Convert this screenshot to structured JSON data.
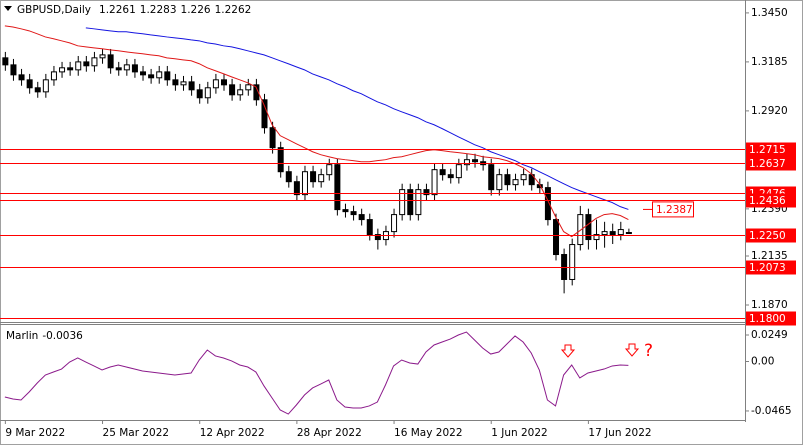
{
  "chart_data": [
    {
      "type": "candlestick",
      "title": "GBPUSD,Daily",
      "up_color": "#ffffff",
      "down_color": "#000000",
      "open": [
        1.3207,
        1.3169,
        1.3115,
        1.3088,
        1.3045,
        1.3023,
        1.3088,
        1.3131,
        1.3153,
        1.3142,
        1.3185,
        1.3164,
        1.3207,
        1.3223,
        1.3153,
        1.3142,
        1.3169,
        1.3131,
        1.3115,
        1.3099,
        1.3131,
        1.3088,
        1.3061,
        1.3077,
        1.3034,
        1.2991,
        1.3045,
        1.3088,
        1.3061,
        1.3007,
        1.3034,
        1.3061,
        1.298,
        1.2829,
        1.2721,
        1.2591,
        1.2537,
        1.2467,
        1.2591,
        1.2537,
        1.2575,
        1.2629,
        1.2386,
        1.2375,
        1.2359,
        1.2332,
        1.2251,
        1.2224,
        1.2267,
        1.2359,
        1.2494,
        1.2359,
        1.2494,
        1.2467,
        1.2602,
        1.2575,
        1.2559,
        1.2629,
        1.2656,
        1.2645,
        1.2629,
        1.2494,
        1.2575,
        1.2521,
        1.2548,
        1.2575,
        1.2521,
        1.2505,
        1.2332,
        1.2143,
        1.2008,
        1.2197,
        1.2359,
        1.2224,
        1.2251,
        1.2267,
        1.2251,
        1.2261
      ],
      "high": [
        1.3239,
        1.3201,
        1.3147,
        1.312,
        1.3077,
        1.312,
        1.3163,
        1.3185,
        1.3185,
        1.3217,
        1.3217,
        1.3239,
        1.3255,
        1.3255,
        1.3185,
        1.3201,
        1.3201,
        1.3163,
        1.3147,
        1.3163,
        1.3163,
        1.312,
        1.3109,
        1.3109,
        1.3066,
        1.3077,
        1.312,
        1.312,
        1.3093,
        1.3066,
        1.3093,
        1.3093,
        1.3012,
        1.2861,
        1.2753,
        1.2623,
        1.2569,
        1.2623,
        1.2623,
        1.2607,
        1.2661,
        1.2661,
        1.2418,
        1.2407,
        1.2391,
        1.2364,
        1.2283,
        1.2299,
        1.2391,
        1.2526,
        1.2526,
        1.2526,
        1.2526,
        1.2634,
        1.2634,
        1.2607,
        1.2661,
        1.2688,
        1.2688,
        1.2677,
        1.2661,
        1.2607,
        1.2607,
        1.258,
        1.2607,
        1.2607,
        1.2553,
        1.2537,
        1.2364,
        1.2175,
        1.2229,
        1.2406,
        1.2391,
        1.2332,
        1.232,
        1.231,
        1.232,
        1.2283
      ],
      "low": [
        1.3137,
        1.3083,
        1.3056,
        1.3013,
        1.2991,
        1.2991,
        1.3056,
        1.3099,
        1.311,
        1.311,
        1.3132,
        1.3132,
        1.3175,
        1.3121,
        1.311,
        1.311,
        1.3099,
        1.3083,
        1.3067,
        1.3067,
        1.3056,
        1.3029,
        1.3029,
        1.3002,
        1.2959,
        1.2959,
        1.3013,
        1.3029,
        1.2975,
        1.2975,
        1.3002,
        1.2948,
        1.2797,
        1.2689,
        1.2559,
        1.2505,
        1.2435,
        1.2435,
        1.2505,
        1.2505,
        1.2543,
        1.2354,
        1.2343,
        1.2327,
        1.23,
        1.2219,
        1.217,
        1.2192,
        1.2235,
        1.2327,
        1.2327,
        1.2327,
        1.2435,
        1.2435,
        1.2543,
        1.2527,
        1.2527,
        1.2597,
        1.2613,
        1.2597,
        1.2462,
        1.2462,
        1.2489,
        1.2489,
        1.2516,
        1.2489,
        1.2473,
        1.23,
        1.2111,
        1.1933,
        1.1976,
        1.2165,
        1.217,
        1.217,
        1.218,
        1.22,
        1.222,
        1.226
      ],
      "close": [
        1.3169,
        1.3115,
        1.3088,
        1.3045,
        1.3023,
        1.3088,
        1.3131,
        1.3153,
        1.3142,
        1.3185,
        1.3164,
        1.3207,
        1.3223,
        1.3153,
        1.3142,
        1.3169,
        1.3131,
        1.3115,
        1.3099,
        1.3131,
        1.3088,
        1.3061,
        1.3077,
        1.3034,
        1.2991,
        1.3045,
        1.3088,
        1.3061,
        1.3007,
        1.3034,
        1.3061,
        1.298,
        1.2829,
        1.2721,
        1.2591,
        1.2537,
        1.2467,
        1.2591,
        1.2537,
        1.2575,
        1.2629,
        1.2386,
        1.2375,
        1.2359,
        1.2332,
        1.2251,
        1.2224,
        1.2267,
        1.2359,
        1.2494,
        1.2359,
        1.2494,
        1.2467,
        1.2602,
        1.2575,
        1.2559,
        1.2629,
        1.2656,
        1.2645,
        1.2629,
        1.2494,
        1.2575,
        1.2521,
        1.2548,
        1.2575,
        1.2521,
        1.2505,
        1.2332,
        1.2143,
        1.2008,
        1.2197,
        1.2359,
        1.2224,
        1.2251,
        1.2267,
        1.2251,
        1.2278,
        1.2262
      ],
      "overlays": [
        {
          "color": "#e01818",
          "values": [
            1.338,
            1.3374,
            1.3364,
            1.3353,
            1.3337,
            1.332,
            1.331,
            1.3299,
            1.3288,
            1.3272,
            1.3266,
            1.3261,
            1.3256,
            1.325,
            1.3245,
            1.3239,
            1.3234,
            1.3229,
            1.3223,
            1.3218,
            1.3207,
            1.3202,
            1.3196,
            1.3191,
            1.3175,
            1.3153,
            1.3137,
            1.3121,
            1.3104,
            1.3088,
            1.3072,
            1.305,
            1.2953,
            1.2845,
            1.2786,
            1.2764,
            1.2742,
            1.2721,
            1.2699,
            1.2683,
            1.2672,
            1.2662,
            1.2656,
            1.2651,
            1.2645,
            1.2645,
            1.2651,
            1.2656,
            1.2667,
            1.2672,
            1.2683,
            1.2694,
            1.2705,
            1.271,
            1.2705,
            1.2699,
            1.2694,
            1.2689,
            1.2683,
            1.2672,
            1.2667,
            1.2662,
            1.2651,
            1.2634,
            1.2613,
            1.258,
            1.2526,
            1.244,
            1.2348,
            1.2267,
            1.224,
            1.2272,
            1.2305,
            1.2338,
            1.2359,
            1.2364,
            1.2354,
            1.2332
          ]
        },
        {
          "color": "#1414e0",
          "value_callout": true,
          "values": [
            null,
            null,
            null,
            null,
            null,
            null,
            null,
            null,
            null,
            null,
            1.3369,
            1.3364,
            1.3358,
            1.3353,
            1.3348,
            1.3348,
            1.3342,
            1.3337,
            1.3331,
            1.3326,
            1.332,
            1.3315,
            1.331,
            1.3304,
            1.3299,
            1.3288,
            1.3282,
            1.3272,
            1.3266,
            1.3256,
            1.3245,
            1.3234,
            1.3223,
            1.3207,
            1.3191,
            1.3175,
            1.3158,
            1.3142,
            1.312,
            1.3104,
            1.3088,
            1.3067,
            1.305,
            1.3029,
            1.3013,
            1.2991,
            1.2969,
            1.2953,
            1.2932,
            1.2915,
            1.2899,
            1.2883,
            1.2861,
            1.2845,
            1.2824,
            1.2802,
            1.278,
            1.2759,
            1.2737,
            1.2721,
            1.2699,
            1.2683,
            1.2667,
            1.2651,
            1.2629,
            1.2613,
            1.2591,
            1.257,
            1.2548,
            1.2526,
            1.2505,
            1.2488,
            1.2472,
            1.2456,
            1.244,
            1.2424,
            1.2402,
            1.2387
          ]
        }
      ],
      "levels": [
        1.2715,
        1.2637,
        1.2476,
        1.2436,
        {
          "value": 1.225,
          "label": "1.2250"
        },
        1.2073,
        {
          "value": 1.18,
          "label": "1.1800"
        }
      ],
      "level_color": "#ff0000",
      "xlim": [
        -0.6,
        91.4
      ],
      "ylim": [
        1.1778,
        1.3509
      ],
      "yticks": [
        {
          "value": 1.345,
          "label": "1.3450"
        },
        1.3185,
        {
          "value": 1.292,
          "label": "1.2920"
        },
        {
          "value": 1.239,
          "label": "1.2390"
        },
        1.2135,
        {
          "value": 1.187,
          "label": "1.1870"
        }
      ]
    },
    {
      "type": "line",
      "series": [
        {
          "name": "Marlin",
          "color": "#8b1a8b",
          "values": [
            -0.0334,
            -0.0353,
            -0.0362,
            -0.0287,
            -0.0202,
            -0.0127,
            -0.0099,
            -0.0071,
            -0.0005,
            0.0033,
            -0.0005,
            -0.0042,
            -0.008,
            -0.0052,
            -0.0033,
            -0.0052,
            -0.0071,
            -0.0089,
            -0.0099,
            -0.0108,
            -0.0118,
            -0.0127,
            -0.0118,
            -0.0108,
            0.0014,
            0.0108,
            0.0052,
            0.0033,
            0.0005,
            -0.0033,
            -0.0052,
            -0.0099,
            -0.023,
            -0.0343,
            -0.0456,
            -0.0494,
            -0.0409,
            -0.0315,
            -0.0249,
            -0.0212,
            -0.0174,
            -0.0362,
            -0.0428,
            -0.0437,
            -0.0437,
            -0.0418,
            -0.0381,
            -0.0221,
            -0.0042,
            0.0014,
            -0.0014,
            -0.0024,
            0.0089,
            0.0155,
            0.0183,
            0.0211,
            0.0249,
            0.0277,
            0.0202,
            0.0127,
            0.007,
            0.0089,
            0.0164,
            0.024,
            0.0183,
            0.008,
            -0.008,
            -0.0362,
            -0.0418,
            -0.0127,
            -0.0033,
            -0.0155,
            -0.0108,
            -0.0089,
            -0.0071,
            -0.0042,
            -0.0033,
            -0.0036
          ]
        }
      ],
      "annotations": [
        "?"
      ],
      "annotation_color": "#ff0000",
      "xlim": [
        -0.6,
        91.4
      ],
      "xticks": [
        {
          "value": 0,
          "label": "9 Mar 2022"
        },
        {
          "value": 12,
          "label": "25 Mar 2022"
        },
        {
          "value": 24,
          "label": "12 Apr 2022"
        },
        {
          "value": 36,
          "label": "28 Apr 2022"
        },
        {
          "value": 48,
          "label": "16 May 2022"
        },
        {
          "value": 60,
          "label": "1 Jun 2022"
        },
        {
          "value": 72,
          "label": "17 Jun 2022"
        }
      ],
      "ylim": [
        -0.055,
        0.0343
      ],
      "yticks": [
        0.0249,
        {
          "value": 0,
          "label": "0.00"
        },
        -0.0465
      ]
    }
  ]
}
